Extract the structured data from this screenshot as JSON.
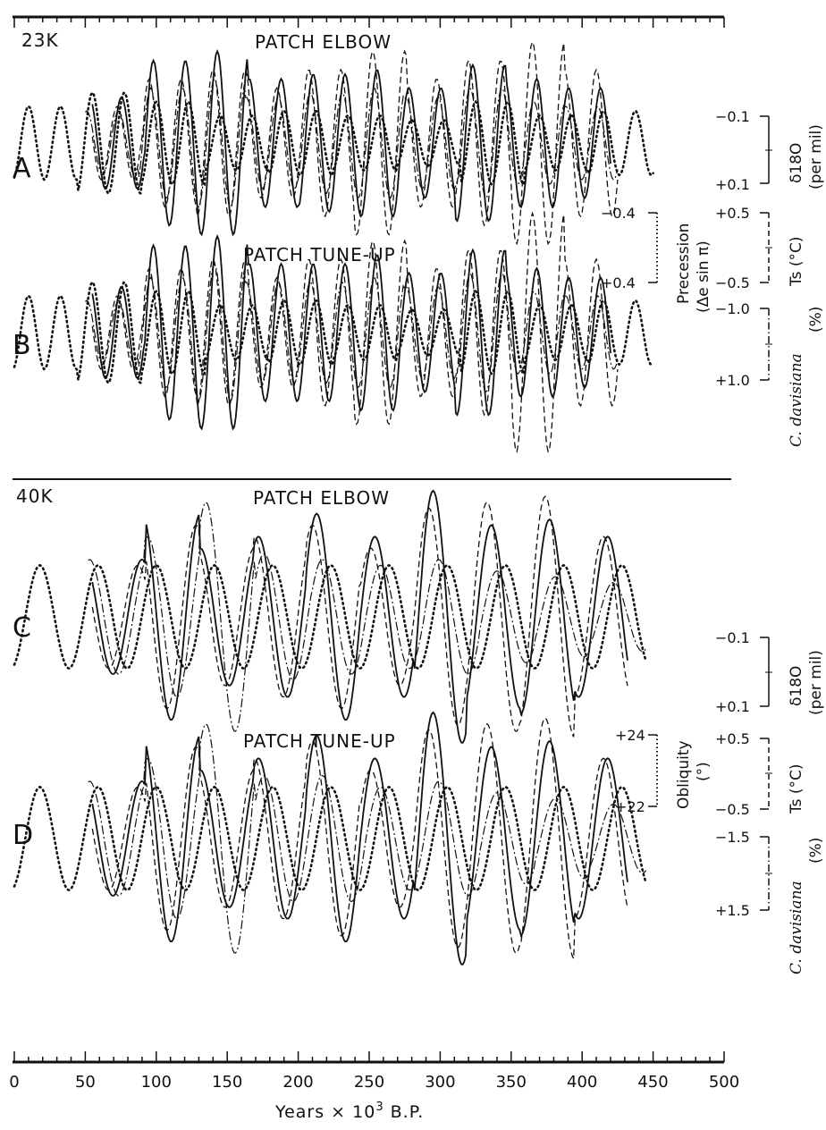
{
  "figure": {
    "periods": [
      "23K",
      "40K"
    ],
    "panels": [
      {
        "letter": "A",
        "title": "PATCH ELBOW"
      },
      {
        "letter": "B",
        "title": "PATCH TUNE-UP"
      },
      {
        "letter": "C",
        "title": "PATCH ELBOW"
      },
      {
        "letter": "D",
        "title": "PATCH TUNE-UP"
      }
    ],
    "x_axis": {
      "label_prefix": "Years × 10",
      "label_exp": "3",
      "label_suffix": " B.P.",
      "ticks": [
        "0",
        "50",
        "100",
        "150",
        "200",
        "250",
        "300",
        "350",
        "400",
        "450",
        "500"
      ]
    },
    "scales_23k": {
      "d18o_top": "−0.1",
      "d18o_bottom": "+0.1",
      "d18o_label": "δ18O",
      "d18o_unit": "(per mil)",
      "prec_top": "−0.4",
      "prec_bottom": "+0.4",
      "prec_label": "Precession",
      "prec_unit": "(Δe sin π)",
      "ts_top": "+0.5",
      "ts_bottom": "−0.5",
      "ts_label": "Ts (°C)",
      "cd_top": "−1.0",
      "cd_bottom": "+1.0",
      "cd_label_italic": "C. davisiana",
      "cd_unit": "(%)"
    },
    "scales_40k": {
      "d18o_top": "−0.1",
      "d18o_bottom": "+0.1",
      "d18o_label": "δ18O",
      "d18o_unit": "(per mil)",
      "obl_top": "+24",
      "obl_bottom": "+22",
      "obl_label": "Obliquity",
      "obl_unit": "(°)",
      "ts_top": "+0.5",
      "ts_bottom": "−0.5",
      "ts_label": "Ts (°C)",
      "cd_top": "−1.5",
      "cd_bottom": "+1.5",
      "cd_label_italic": "C. davisiana",
      "cd_unit": "(%)"
    }
  },
  "chart_data": [
    {
      "type": "line",
      "panel": "A",
      "period_kyr": 23,
      "title": "PATCH ELBOW",
      "xlabel": "Years × 10³ B.P.",
      "xlim": [
        0,
        500
      ],
      "series": [
        {
          "style": "dotted",
          "xstart": 0,
          "xend": 450,
          "period": 22.5,
          "phase": 10,
          "amp": [
            0.4,
            0.55,
            0.45,
            0.3,
            0.35,
            0.3,
            0.25,
            0.45,
            0.3,
            0.35
          ]
        },
        {
          "style": "solid",
          "xstart": 55,
          "xend": 420,
          "period": 22.5,
          "phase": 8,
          "amp": [
            0.5,
            0.9,
            1.0,
            0.7,
            0.75,
            0.8,
            0.6,
            0.85,
            0.7,
            0.6
          ]
        },
        {
          "style": "dashed",
          "xstart": 55,
          "xend": 425,
          "period": 22.5,
          "phase": 5,
          "amp": [
            0.4,
            0.7,
            0.8,
            0.6,
            0.8,
            1.0,
            0.7,
            0.9,
            1.1,
            0.8
          ]
        },
        {
          "style": "dashdot",
          "xstart": 50,
          "xend": 425,
          "period": 22.5,
          "phase": 6,
          "amp": [
            0.35,
            0.6,
            0.7,
            0.5,
            0.55,
            0.6,
            0.5,
            0.6,
            0.45,
            0.4
          ]
        }
      ]
    },
    {
      "type": "line",
      "panel": "B",
      "period_kyr": 23,
      "title": "PATCH TUNE-UP",
      "xlabel": "Years × 10³ B.P.",
      "xlim": [
        0,
        500
      ],
      "series": [
        {
          "style": "dotted",
          "xstart": 0,
          "xend": 450,
          "period": 22.5,
          "phase": 10,
          "amp": [
            0.4,
            0.55,
            0.45,
            0.3,
            0.35,
            0.3,
            0.25,
            0.45,
            0.3,
            0.35
          ]
        },
        {
          "style": "solid",
          "xstart": 55,
          "xend": 420,
          "period": 22.5,
          "phase": 8,
          "amp": [
            0.5,
            0.95,
            1.05,
            0.75,
            0.75,
            0.85,
            0.65,
            0.9,
            0.7,
            0.6
          ]
        },
        {
          "style": "dashed",
          "xstart": 55,
          "xend": 425,
          "period": 22.5,
          "phase": 5,
          "amp": [
            0.4,
            0.7,
            0.8,
            0.6,
            0.8,
            1.0,
            0.7,
            0.9,
            1.3,
            0.8
          ]
        },
        {
          "style": "dashdot",
          "xstart": 50,
          "xend": 425,
          "period": 22.5,
          "phase": 6,
          "amp": [
            0.35,
            0.6,
            0.75,
            0.55,
            0.55,
            0.6,
            0.5,
            0.65,
            0.45,
            0.4
          ]
        }
      ]
    },
    {
      "type": "line",
      "panel": "C",
      "period_kyr": 40,
      "title": "PATCH ELBOW",
      "xlabel": "Years × 10³ B.P.",
      "xlim": [
        0,
        500
      ],
      "series": [
        {
          "style": "dotted",
          "xstart": 0,
          "xend": 445,
          "period": 41,
          "phase": 18,
          "amp": [
            0.45,
            0.45,
            0.45,
            0.45,
            0.45,
            0.45,
            0.45,
            0.45,
            0.45,
            0.45
          ]
        },
        {
          "style": "solid",
          "xstart": 55,
          "xend": 432,
          "period": 41,
          "phase": 8,
          "amp": [
            0.5,
            0.9,
            0.6,
            0.7,
            0.9,
            0.7,
            1.1,
            0.8,
            0.85,
            0.7
          ]
        },
        {
          "style": "dashed",
          "xstart": 55,
          "xend": 432,
          "period": 41,
          "phase": 5,
          "amp": [
            0.45,
            0.8,
            0.6,
            0.7,
            0.8,
            0.6,
            0.95,
            1.0,
            1.05,
            0.7
          ]
        },
        {
          "style": "dashdot",
          "xstart": 52,
          "xend": 445,
          "period": 41,
          "phase": 12,
          "amp": [
            0.5,
            0.7,
            1.0,
            0.55,
            0.5,
            0.45,
            0.5,
            0.4,
            0.35,
            0.3
          ]
        }
      ]
    },
    {
      "type": "line",
      "panel": "D",
      "period_kyr": 40,
      "title": "PATCH TUNE-UP",
      "xlabel": "Years × 10³ B.P.",
      "xlim": [
        0,
        500
      ],
      "series": [
        {
          "style": "dotted",
          "xstart": 0,
          "xend": 445,
          "period": 41,
          "phase": 18,
          "amp": [
            0.45,
            0.45,
            0.45,
            0.45,
            0.45,
            0.45,
            0.45,
            0.45,
            0.45,
            0.45
          ]
        },
        {
          "style": "solid",
          "xstart": 55,
          "xend": 432,
          "period": 41,
          "phase": 8,
          "amp": [
            0.5,
            0.9,
            0.6,
            0.7,
            0.9,
            0.7,
            1.1,
            0.8,
            0.85,
            0.7
          ]
        },
        {
          "style": "dashed",
          "xstart": 55,
          "xend": 432,
          "period": 41,
          "phase": 5,
          "amp": [
            0.45,
            0.8,
            0.6,
            0.7,
            0.85,
            0.6,
            0.95,
            1.0,
            1.05,
            0.7
          ]
        },
        {
          "style": "dashdot",
          "xstart": 52,
          "xend": 445,
          "period": 41,
          "phase": 12,
          "amp": [
            0.5,
            0.7,
            1.0,
            0.55,
            0.55,
            0.45,
            0.5,
            0.4,
            0.35,
            0.3
          ]
        }
      ]
    }
  ]
}
